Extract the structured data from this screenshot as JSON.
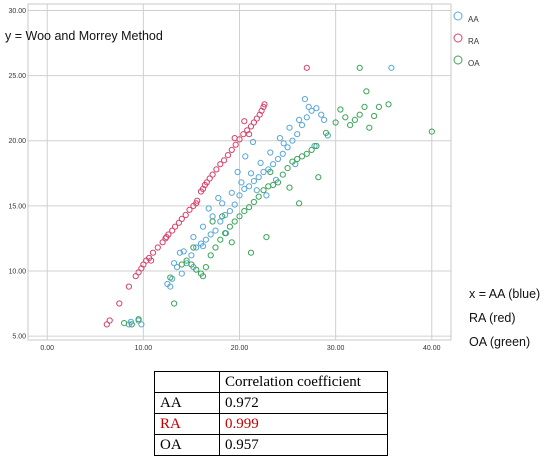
{
  "chart_data": {
    "type": "scatter",
    "title": "",
    "ylabel": "y = Woo and Morrey Method",
    "xlabel_lines": [
      "x = AA (blue)",
      "RA (red)",
      "OA (green)"
    ],
    "xlim": [
      -2,
      42
    ],
    "ylim": [
      4.7,
      30.5
    ],
    "xticks": [
      "0.00",
      "10.00",
      "20.00",
      "30.00",
      "40.00"
    ],
    "yticks": [
      "5.00",
      "10.00",
      "15.00",
      "20.00",
      "25.00",
      "30.00"
    ],
    "grid": true,
    "legend": {
      "placement": "top-right",
      "entries": [
        "AA",
        "RA",
        "OA"
      ]
    },
    "series": [
      {
        "name": "AA",
        "color": "#5aa7d8",
        "points": [
          [
            8.5,
            5.9
          ],
          [
            8.7,
            6.1
          ],
          [
            9.5,
            6.2
          ],
          [
            9.8,
            5.9
          ],
          [
            12.5,
            9.0
          ],
          [
            13.0,
            9.4
          ],
          [
            13.5,
            10.3
          ],
          [
            14.0,
            9.8
          ],
          [
            14.5,
            10.6
          ],
          [
            15.0,
            11.2
          ],
          [
            15.5,
            11.8
          ],
          [
            16.0,
            12.1
          ],
          [
            16.5,
            12.4
          ],
          [
            17.0,
            12.8
          ],
          [
            17.5,
            13.1
          ],
          [
            18.0,
            13.8
          ],
          [
            18.5,
            14.3
          ],
          [
            19.0,
            14.6
          ],
          [
            19.5,
            15.1
          ],
          [
            20.0,
            15.8
          ],
          [
            20.5,
            16.3
          ],
          [
            21.0,
            16.5
          ],
          [
            21.5,
            16.9
          ],
          [
            22.0,
            17.2
          ],
          [
            22.5,
            17.6
          ],
          [
            23.0,
            17.8
          ],
          [
            23.5,
            18.2
          ],
          [
            24.0,
            18.6
          ],
          [
            24.5,
            19.0
          ],
          [
            25.0,
            19.5
          ],
          [
            25.5,
            20.0
          ],
          [
            26.0,
            20.5
          ],
          [
            26.5,
            21.2
          ],
          [
            27.0,
            21.8
          ],
          [
            27.5,
            22.3
          ],
          [
            28.0,
            22.5
          ],
          [
            28.5,
            22.0
          ],
          [
            27.2,
            22.6
          ],
          [
            26.2,
            21.6
          ],
          [
            25.2,
            21.0
          ],
          [
            24.2,
            20.2
          ],
          [
            23.2,
            19.1
          ],
          [
            22.2,
            18.3
          ],
          [
            21.2,
            17.5
          ],
          [
            20.2,
            16.8
          ],
          [
            19.2,
            16.0
          ],
          [
            18.2,
            15.2
          ],
          [
            17.2,
            14.2
          ],
          [
            16.2,
            13.4
          ],
          [
            15.2,
            12.6
          ],
          [
            14.2,
            11.5
          ],
          [
            13.2,
            10.6
          ],
          [
            17.8,
            15.6
          ],
          [
            16.8,
            14.8
          ],
          [
            19.8,
            17.6
          ],
          [
            21.8,
            16.2
          ],
          [
            23.8,
            17.0
          ],
          [
            25.8,
            18.2
          ],
          [
            22.8,
            15.8
          ],
          [
            28.8,
            21.6
          ],
          [
            29.2,
            20.4
          ],
          [
            27.8,
            19.6
          ],
          [
            35.8,
            25.6
          ],
          [
            20.6,
            18.8
          ],
          [
            24.6,
            19.8
          ],
          [
            18.6,
            12.9
          ],
          [
            16.2,
            11.9
          ],
          [
            15.2,
            10.3
          ],
          [
            13.8,
            11.4
          ],
          [
            12.8,
            8.8
          ],
          [
            21.4,
            19.9
          ],
          [
            26.8,
            23.2
          ]
        ]
      },
      {
        "name": "RA",
        "color": "#d8416a",
        "points": [
          [
            6.2,
            5.9
          ],
          [
            6.5,
            6.2
          ],
          [
            7.5,
            7.5
          ],
          [
            8.5,
            8.8
          ],
          [
            9.2,
            9.6
          ],
          [
            9.5,
            9.9
          ],
          [
            9.8,
            10.2
          ],
          [
            10.0,
            10.5
          ],
          [
            10.3,
            10.8
          ],
          [
            10.6,
            11.0
          ],
          [
            11.0,
            11.4
          ],
          [
            11.5,
            11.8
          ],
          [
            12.0,
            12.2
          ],
          [
            12.3,
            12.5
          ],
          [
            12.6,
            12.8
          ],
          [
            13.0,
            13.1
          ],
          [
            13.3,
            13.4
          ],
          [
            13.7,
            13.7
          ],
          [
            14.0,
            14.0
          ],
          [
            14.4,
            14.3
          ],
          [
            14.8,
            14.7
          ],
          [
            15.2,
            15.0
          ],
          [
            15.6,
            15.4
          ],
          [
            16.0,
            16.1
          ],
          [
            16.2,
            16.3
          ],
          [
            16.4,
            16.6
          ],
          [
            16.6,
            16.8
          ],
          [
            16.9,
            17.1
          ],
          [
            17.2,
            17.4
          ],
          [
            17.6,
            17.8
          ],
          [
            18.0,
            18.2
          ],
          [
            18.4,
            18.5
          ],
          [
            18.8,
            18.9
          ],
          [
            19.2,
            19.3
          ],
          [
            19.6,
            19.7
          ],
          [
            20.0,
            20.1
          ],
          [
            20.4,
            20.5
          ],
          [
            20.8,
            20.8
          ],
          [
            21.2,
            21.1
          ],
          [
            21.5,
            21.4
          ],
          [
            21.8,
            21.7
          ],
          [
            22.1,
            22.0
          ],
          [
            22.3,
            22.3
          ],
          [
            22.5,
            22.6
          ],
          [
            22.6,
            22.8
          ],
          [
            19.5,
            20.2
          ],
          [
            21.0,
            20.5
          ],
          [
            15.5,
            15.2
          ],
          [
            12.4,
            12.6
          ],
          [
            10.8,
            10.8
          ],
          [
            20.5,
            21.5
          ],
          [
            27.0,
            25.6
          ]
        ]
      },
      {
        "name": "OA",
        "color": "#3aa558",
        "points": [
          [
            8.0,
            6.0
          ],
          [
            8.8,
            5.9
          ],
          [
            9.5,
            6.3
          ],
          [
            12.8,
            9.5
          ],
          [
            13.2,
            7.5
          ],
          [
            14.0,
            10.5
          ],
          [
            14.5,
            10.8
          ],
          [
            15.0,
            10.5
          ],
          [
            15.5,
            10.1
          ],
          [
            16.0,
            9.8
          ],
          [
            16.5,
            10.3
          ],
          [
            17.0,
            11.2
          ],
          [
            17.5,
            11.8
          ],
          [
            18.0,
            12.4
          ],
          [
            18.5,
            12.9
          ],
          [
            19.0,
            13.4
          ],
          [
            19.5,
            13.8
          ],
          [
            20.0,
            14.2
          ],
          [
            20.5,
            14.6
          ],
          [
            21.0,
            14.9
          ],
          [
            21.5,
            15.3
          ],
          [
            22.0,
            15.7
          ],
          [
            22.5,
            16.2
          ],
          [
            23.0,
            16.5
          ],
          [
            23.5,
            16.6
          ],
          [
            24.0,
            16.8
          ],
          [
            24.5,
            17.4
          ],
          [
            25.0,
            17.9
          ],
          [
            25.5,
            18.4
          ],
          [
            26.0,
            18.6
          ],
          [
            26.5,
            18.8
          ],
          [
            27.0,
            19.0
          ],
          [
            27.5,
            19.3
          ],
          [
            28.0,
            19.6
          ],
          [
            29.0,
            20.6
          ],
          [
            30.0,
            21.4
          ],
          [
            30.5,
            22.4
          ],
          [
            31.0,
            21.8
          ],
          [
            31.5,
            21.2
          ],
          [
            32.0,
            21.6
          ],
          [
            32.5,
            22.0
          ],
          [
            33.0,
            22.6
          ],
          [
            33.5,
            21.0
          ],
          [
            34.0,
            21.9
          ],
          [
            34.5,
            22.6
          ],
          [
            35.5,
            22.8
          ],
          [
            40.0,
            20.7
          ],
          [
            32.5,
            25.6
          ],
          [
            33.2,
            23.8
          ],
          [
            22.8,
            12.6
          ],
          [
            21.2,
            11.4
          ],
          [
            19.2,
            12.2
          ],
          [
            18.2,
            14.2
          ],
          [
            17.2,
            13.8
          ],
          [
            16.2,
            9.6
          ],
          [
            15.2,
            11.8
          ],
          [
            26.2,
            15.2
          ],
          [
            28.2,
            17.2
          ],
          [
            23.2,
            17.6
          ],
          [
            25.2,
            16.4
          ]
        ]
      }
    ]
  },
  "table": {
    "header": [
      "",
      "Correlation coefficient"
    ],
    "rows": [
      {
        "label": "AA",
        "value": "0.972",
        "color": "#000000"
      },
      {
        "label": "RA",
        "value": "0.999",
        "color": "#c00000"
      },
      {
        "label": "OA",
        "value": "0.957",
        "color": "#000000"
      }
    ]
  }
}
